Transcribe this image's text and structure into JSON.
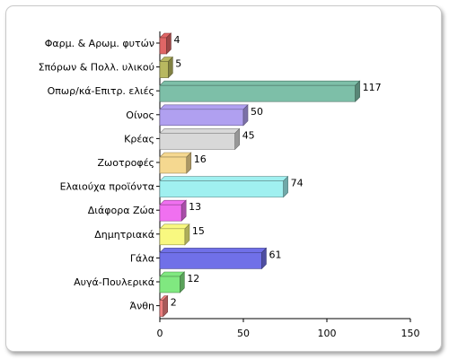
{
  "chart_data": {
    "type": "bar",
    "orientation": "horizontal",
    "style": "3d",
    "categories": [
      "Φαρμ. & Αρωμ. φυτών",
      "Σπόρων & Πολλ. υλικού",
      "Οπωρ/κά-Επιτρ. ελιές",
      "Οίνος",
      "Κρέας",
      "Ζωοτροφές",
      "Ελαιούχα προϊόντα",
      "Διάφορα Ζώα",
      "Δημητριακά",
      "Γάλα",
      "Αυγά-Πουλερικά",
      "Άνθη"
    ],
    "values": [
      4,
      5,
      117,
      50,
      45,
      16,
      74,
      13,
      15,
      61,
      12,
      2
    ],
    "colors": [
      "#e06666",
      "#b8b860",
      "#7dbfa8",
      "#b0a0f0",
      "#d8d8d8",
      "#f5d890",
      "#a0f0f0",
      "#f070f0",
      "#f8f880",
      "#7070e8",
      "#80e880",
      "#f08080"
    ],
    "xlim": [
      0,
      150
    ],
    "xticks": [
      "0",
      "50",
      "100",
      "150"
    ],
    "grid": false,
    "legend": "none"
  }
}
